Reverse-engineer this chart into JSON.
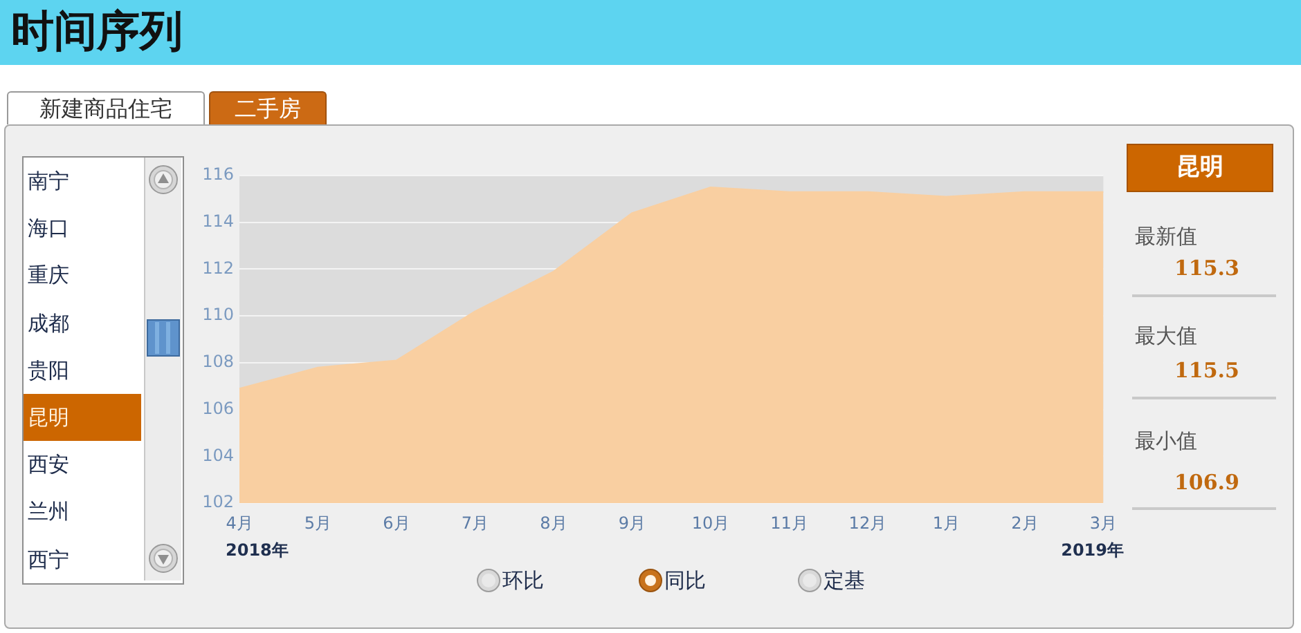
{
  "chart_data": {
    "type": "area",
    "title": "时间序列",
    "categories": [
      "4月",
      "5月",
      "6月",
      "7月",
      "8月",
      "9月",
      "10月",
      "11月",
      "12月",
      "1月",
      "2月",
      "3月"
    ],
    "values": [
      106.9,
      107.8,
      108.1,
      110.2,
      111.9,
      114.4,
      115.5,
      115.3,
      115.3,
      115.1,
      115.3,
      115.3
    ],
    "color": "#f9cfa1",
    "ylim": [
      102,
      116
    ],
    "yticks": [
      102,
      104,
      106,
      108,
      110,
      112,
      114,
      116
    ],
    "grid": "y",
    "annotations": [
      "新建商品住宅",
      "二手房",
      "南宁",
      "海口",
      "重庆",
      "成都",
      "贵阳",
      "昆明",
      "西安",
      "兰州",
      "西宁",
      "昆明",
      "最新值",
      "115.3",
      "最大值",
      "115.5",
      "最小值",
      "106.9",
      "环比",
      "同比",
      "定基",
      "2018年",
      "2019年"
    ]
  }
}
